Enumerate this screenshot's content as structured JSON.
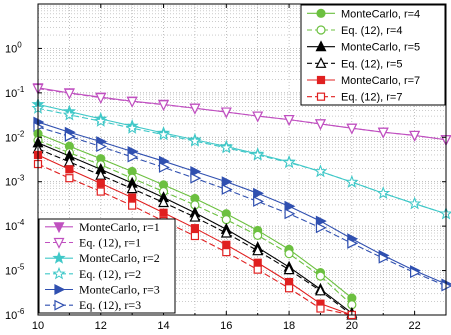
{
  "chart_data": {
    "type": "line",
    "title": "",
    "xlabel": "",
    "ylabel": "",
    "xlim": [
      10,
      23
    ],
    "ylim": [
      1e-06,
      10
    ],
    "yscale": "log",
    "grid": true,
    "x_ticks": [
      10,
      12,
      14,
      16,
      18,
      20,
      22
    ],
    "x_tick_labels": [
      "10",
      "12",
      "14",
      "16",
      "18",
      "20",
      "22"
    ],
    "y_ticks": [
      1e-06,
      1e-05,
      0.0001,
      0.001,
      0.01,
      0.1,
      1
    ],
    "y_tick_labels": [
      {
        "base": "10",
        "exp": "-6"
      },
      {
        "base": "10",
        "exp": "-5"
      },
      {
        "base": "10",
        "exp": "-4"
      },
      {
        "base": "10",
        "exp": "-3"
      },
      {
        "base": "10",
        "exp": "-2"
      },
      {
        "base": "10",
        "exp": "-1"
      },
      {
        "base": "10",
        "exp": "0"
      }
    ],
    "legends": [
      {
        "placement": "top-right",
        "entries": [
          {
            "series": 6,
            "label": "MonteCarlo, r=4"
          },
          {
            "series": 7,
            "label": "Eq. (12), r=4"
          },
          {
            "series": 8,
            "label": "MonteCarlo, r=5"
          },
          {
            "series": 9,
            "label": "Eq. (12), r=5"
          },
          {
            "series": 10,
            "label": "MonteCarlo, r=7"
          },
          {
            "series": 11,
            "label": "Eq. (12), r=7"
          }
        ]
      },
      {
        "placement": "bottom-left",
        "entries": [
          {
            "series": 0,
            "label": "MonteCarlo, r=1"
          },
          {
            "series": 1,
            "label": "Eq. (12), r=1"
          },
          {
            "series": 2,
            "label": "MonteCarlo, r=2"
          },
          {
            "series": 3,
            "label": "Eq. (12), r=2"
          },
          {
            "series": 4,
            "label": "MonteCarlo, r=3"
          },
          {
            "series": 5,
            "label": "Eq. (12), r=3"
          }
        ]
      }
    ],
    "series": [
      {
        "name": "MonteCarlo, r=1",
        "color": "#c050c0",
        "dash": "solid",
        "marker": "triangle-down",
        "filled": true,
        "x": [
          10,
          11,
          12,
          13,
          14,
          15,
          16,
          17,
          18,
          19,
          20,
          21,
          22,
          23
        ],
        "y": [
          0.13,
          0.1,
          0.08,
          0.065,
          0.055,
          0.045,
          0.037,
          0.03,
          0.025,
          0.02,
          0.016,
          0.013,
          0.011,
          0.0088
        ]
      },
      {
        "name": "Eq. (12), r=1",
        "color": "#c050c0",
        "dash": "dashed",
        "marker": "triangle-down",
        "filled": false,
        "x": [
          10,
          11,
          12,
          13,
          14,
          15,
          16,
          17,
          18,
          19,
          20,
          21,
          22,
          23
        ],
        "y": [
          0.125,
          0.098,
          0.078,
          0.064,
          0.054,
          0.045,
          0.037,
          0.03,
          0.025,
          0.02,
          0.016,
          0.013,
          0.011,
          0.0088
        ]
      },
      {
        "name": "MonteCarlo, r=2",
        "color": "#40c8c8",
        "dash": "solid",
        "marker": "star",
        "filled": true,
        "x": [
          10,
          11,
          12,
          13,
          14,
          15,
          16,
          17,
          18,
          19,
          20,
          21,
          22,
          23
        ],
        "y": [
          0.055,
          0.038,
          0.026,
          0.018,
          0.0125,
          0.0088,
          0.0062,
          0.0042,
          0.0028,
          0.0017,
          0.00098,
          0.00055,
          0.00032,
          0.00019
        ]
      },
      {
        "name": "Eq. (12), r=2",
        "color": "#40c8c8",
        "dash": "dashed",
        "marker": "star",
        "filled": false,
        "x": [
          10,
          11,
          12,
          13,
          14,
          15,
          16,
          17,
          18,
          19,
          20,
          21,
          22,
          23
        ],
        "y": [
          0.045,
          0.032,
          0.023,
          0.016,
          0.0115,
          0.0082,
          0.0058,
          0.004,
          0.0027,
          0.0017,
          0.00098,
          0.00055,
          0.00032,
          0.00019
        ]
      },
      {
        "name": "MonteCarlo, r=3",
        "color": "#3050b0",
        "dash": "solid",
        "marker": "triangle-right",
        "filled": true,
        "x": [
          10,
          11,
          12,
          13,
          14,
          15,
          16,
          17,
          18,
          19,
          20,
          21,
          22,
          23
        ],
        "y": [
          0.022,
          0.013,
          0.008,
          0.0048,
          0.0029,
          0.0017,
          0.001,
          0.00055,
          0.00028,
          0.00013,
          5.2e-05,
          2.2e-05,
          1e-05,
          5e-06
        ]
      },
      {
        "name": "Eq. (12), r=3",
        "color": "#3050b0",
        "dash": "dashed",
        "marker": "triangle-right",
        "filled": false,
        "x": [
          10,
          11,
          12,
          13,
          14,
          15,
          16,
          17,
          18,
          19,
          20,
          21,
          22,
          23
        ],
        "y": [
          0.017,
          0.0105,
          0.0062,
          0.0036,
          0.0021,
          0.0012,
          0.00067,
          0.00036,
          0.00019,
          9.2e-05,
          4.1e-05,
          1.9e-05,
          9e-06,
          4.5e-06
        ]
      },
      {
        "name": "MonteCarlo, r=4",
        "color": "#6cc040",
        "dash": "solid",
        "marker": "circle",
        "filled": true,
        "x": [
          10,
          11,
          12,
          13,
          14,
          15,
          16,
          17,
          18,
          19,
          20
        ],
        "y": [
          0.012,
          0.0063,
          0.0033,
          0.0017,
          0.00085,
          0.00042,
          0.00019,
          8e-05,
          3e-05,
          9e-06,
          2.4e-06
        ]
      },
      {
        "name": "Eq. (12), r=4",
        "color": "#6cc040",
        "dash": "dashed",
        "marker": "circle",
        "filled": false,
        "x": [
          10,
          11,
          12,
          13,
          14,
          15,
          16,
          17,
          18,
          19,
          20
        ],
        "y": [
          0.0085,
          0.0045,
          0.0024,
          0.0012,
          0.0006,
          0.0003,
          0.00014,
          6.2e-05,
          2.4e-05,
          7.5e-06,
          1.7e-06
        ]
      },
      {
        "name": "MonteCarlo, r=5",
        "color": "#000000",
        "dash": "solid",
        "marker": "triangle-up",
        "filled": true,
        "x": [
          10,
          11,
          12,
          13,
          14,
          15,
          16,
          17,
          18,
          19,
          20
        ],
        "y": [
          0.0075,
          0.0038,
          0.0019,
          0.00093,
          0.00044,
          0.0002,
          8.5e-05,
          3.3e-05,
          1.2e-05,
          3.8e-06,
          1.1e-06
        ]
      },
      {
        "name": "Eq. (12), r=5",
        "color": "#000000",
        "dash": "dashed",
        "marker": "triangle-up",
        "filled": false,
        "x": [
          10,
          11,
          12,
          13,
          14,
          15,
          16,
          17,
          18,
          19,
          20
        ],
        "y": [
          0.0055,
          0.0028,
          0.0014,
          0.0007,
          0.00034,
          0.00016,
          7e-05,
          2.8e-05,
          1.05e-05,
          3.5e-06,
          1e-06
        ]
      },
      {
        "name": "MonteCarlo, r=7",
        "color": "#e02020",
        "dash": "solid",
        "marker": "square",
        "filled": true,
        "x": [
          10,
          11,
          12,
          13,
          14,
          15,
          16,
          17,
          18,
          19,
          20
        ],
        "y": [
          0.004,
          0.0019,
          0.00092,
          0.00044,
          0.0002,
          9e-05,
          3.8e-05,
          1.5e-05,
          5.5e-06,
          1.8e-06,
          1e-06
        ]
      },
      {
        "name": "Eq. (12), r=7",
        "color": "#e02020",
        "dash": "dashed",
        "marker": "square",
        "filled": false,
        "x": [
          10,
          11,
          12,
          13,
          14,
          15,
          16,
          17,
          18,
          19,
          20
        ],
        "y": [
          0.0025,
          0.0012,
          0.0006,
          0.00029,
          0.00013,
          6e-05,
          2.6e-05,
          1.05e-05,
          4e-06,
          1.4e-06,
          1e-06
        ]
      }
    ]
  }
}
